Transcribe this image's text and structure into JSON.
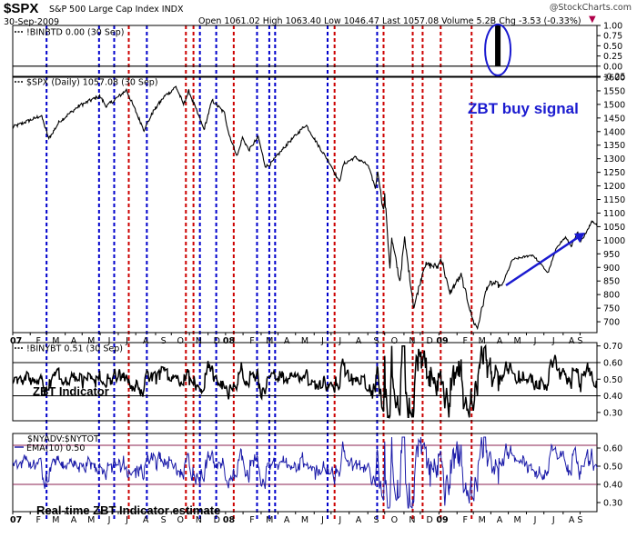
{
  "header": {
    "symbol": "$SPX",
    "name": "S&P 500 Large Cap Index INDX",
    "date": "30-Sep-2009",
    "quote_items": [
      {
        "label": "Open",
        "value": "1061.02"
      },
      {
        "label": "High",
        "value": "1063.40"
      },
      {
        "label": "Low",
        "value": "1046.47"
      },
      {
        "label": "Last",
        "value": "1057.08"
      },
      {
        "label": "Volume",
        "value": "5.2B"
      },
      {
        "label": "Chg",
        "value": "-3.53 (-0.33%)"
      }
    ],
    "brand": "@StockCharts.com",
    "down_arrow": "▼"
  },
  "chart_data": [
    {
      "type": "line",
      "panel": "binbtd",
      "label": "!BINBTD 0.00 (30 Sep)",
      "y_ticks": [
        "1.00",
        "0.75",
        "0.50",
        "0.25",
        "0.00",
        "-0.25"
      ],
      "ylim": [
        -0.25,
        1.0
      ],
      "signal": {
        "date": "2009-04-13",
        "value": 1.0
      },
      "last_value": 0.0
    },
    {
      "type": "line",
      "panel": "spx",
      "label": "$SPX (Daily) 1057.08 (30 Sep)",
      "y_ticks": [
        "1600",
        "1550",
        "1500",
        "1450",
        "1400",
        "1350",
        "1300",
        "1250",
        "1200",
        "1150",
        "1100",
        "1050",
        "1000",
        "950",
        "900",
        "850",
        "800",
        "750",
        "700"
      ],
      "ylim": [
        660,
        1600
      ],
      "keypoints": [
        [
          "2007-01-02",
          1416
        ],
        [
          "2007-02-20",
          1459
        ],
        [
          "2007-03-05",
          1374
        ],
        [
          "2007-03-23",
          1437
        ],
        [
          "2007-04-26",
          1495
        ],
        [
          "2007-05-31",
          1530
        ],
        [
          "2007-06-12",
          1493
        ],
        [
          "2007-07-16",
          1553
        ],
        [
          "2007-08-15",
          1406
        ],
        [
          "2007-08-31",
          1474
        ],
        [
          "2007-09-19",
          1529
        ],
        [
          "2007-10-09",
          1565
        ],
        [
          "2007-10-22",
          1500
        ],
        [
          "2007-10-31",
          1549
        ],
        [
          "2007-11-26",
          1407
        ],
        [
          "2007-12-10",
          1515
        ],
        [
          "2007-12-31",
          1468
        ],
        [
          "2008-01-08",
          1390
        ],
        [
          "2008-01-22",
          1310
        ],
        [
          "2008-01-31",
          1378
        ],
        [
          "2008-02-11",
          1331
        ],
        [
          "2008-02-27",
          1381
        ],
        [
          "2008-03-10",
          1273
        ],
        [
          "2008-03-17",
          1276
        ],
        [
          "2008-04-15",
          1350
        ],
        [
          "2008-05-19",
          1426
        ],
        [
          "2008-06-06",
          1360
        ],
        [
          "2008-06-30",
          1280
        ],
        [
          "2008-07-15",
          1214
        ],
        [
          "2008-07-23",
          1282
        ],
        [
          "2008-08-11",
          1305
        ],
        [
          "2008-09-02",
          1277
        ],
        [
          "2008-09-15",
          1192
        ],
        [
          "2008-09-19",
          1255
        ],
        [
          "2008-09-29",
          1106
        ],
        [
          "2008-10-01",
          1160
        ],
        [
          "2008-10-10",
          899
        ],
        [
          "2008-10-13",
          1003
        ],
        [
          "2008-10-27",
          848
        ],
        [
          "2008-11-04",
          1005
        ],
        [
          "2008-11-20",
          752
        ],
        [
          "2008-12-08",
          909
        ],
        [
          "2008-12-31",
          903
        ],
        [
          "2009-01-06",
          934
        ],
        [
          "2009-01-20",
          805
        ],
        [
          "2009-02-09",
          870
        ],
        [
          "2009-03-02",
          700
        ],
        [
          "2009-03-09",
          677
        ],
        [
          "2009-03-26",
          832
        ],
        [
          "2009-04-03",
          842
        ],
        [
          "2009-04-20",
          832
        ],
        [
          "2009-05-08",
          929
        ],
        [
          "2009-06-12",
          946
        ],
        [
          "2009-07-08",
          880
        ],
        [
          "2009-07-24",
          979
        ],
        [
          "2009-08-07",
          1010
        ],
        [
          "2009-08-17",
          979
        ],
        [
          "2009-08-28",
          1028
        ],
        [
          "2009-09-02",
          994
        ],
        [
          "2009-09-22",
          1071
        ],
        [
          "2009-09-30",
          1057
        ]
      ],
      "annotation": "ZBT buy signal"
    },
    {
      "type": "line",
      "panel": "zbt",
      "label": "!BINYBT 0.51 (30 Sep)",
      "caption": "ZBT Indicator",
      "y_ticks": [
        "0.70",
        "0.60",
        "0.50",
        "0.40",
        "0.30"
      ],
      "ylim": [
        0.25,
        0.72
      ],
      "reference_lines": [
        0.6,
        0.4
      ],
      "last_value": 0.51
    },
    {
      "type": "line",
      "panel": "nyadv",
      "label": "$NYADV:$NYTOT",
      "label2": "EMA(10) 0.50",
      "caption": "Real-time ZBT Indicator estimate",
      "y_ticks": [
        "0.60",
        "0.50",
        "0.40",
        "0.30"
      ],
      "ylim": [
        0.25,
        0.68
      ],
      "reference_lines": [
        0.615,
        0.4
      ],
      "last_value": 0.5
    }
  ],
  "x_axis": {
    "range": [
      "2007-01-02",
      "2009-09-30"
    ],
    "month_labels": [
      {
        "date": "2007-01-02",
        "label": "07",
        "bold": true
      },
      {
        "date": "2007-02-01",
        "label": "F"
      },
      {
        "date": "2007-03-01",
        "label": "M"
      },
      {
        "date": "2007-04-02",
        "label": "A"
      },
      {
        "date": "2007-05-01",
        "label": "M"
      },
      {
        "date": "2007-06-01",
        "label": "J"
      },
      {
        "date": "2007-07-02",
        "label": "J"
      },
      {
        "date": "2007-08-01",
        "label": "A"
      },
      {
        "date": "2007-09-04",
        "label": "S"
      },
      {
        "date": "2007-10-01",
        "label": "O"
      },
      {
        "date": "2007-11-01",
        "label": "N"
      },
      {
        "date": "2007-12-03",
        "label": "D"
      },
      {
        "date": "2008-01-02",
        "label": "08",
        "bold": true
      },
      {
        "date": "2008-02-01",
        "label": "F"
      },
      {
        "date": "2008-03-03",
        "label": "M"
      },
      {
        "date": "2008-04-01",
        "label": "A"
      },
      {
        "date": "2008-05-01",
        "label": "M"
      },
      {
        "date": "2008-06-02",
        "label": "J"
      },
      {
        "date": "2008-07-01",
        "label": "J"
      },
      {
        "date": "2008-08-01",
        "label": "A"
      },
      {
        "date": "2008-09-02",
        "label": "S"
      },
      {
        "date": "2008-10-01",
        "label": "O"
      },
      {
        "date": "2008-11-03",
        "label": "N"
      },
      {
        "date": "2008-12-01",
        "label": "D"
      },
      {
        "date": "2009-01-02",
        "label": "09",
        "bold": true
      },
      {
        "date": "2009-02-02",
        "label": "F"
      },
      {
        "date": "2009-03-02",
        "label": "M"
      },
      {
        "date": "2009-04-01",
        "label": "A"
      },
      {
        "date": "2009-05-01",
        "label": "M"
      },
      {
        "date": "2009-06-01",
        "label": "J"
      },
      {
        "date": "2009-07-01",
        "label": "J"
      },
      {
        "date": "2009-08-03",
        "label": "A"
      },
      {
        "date": "2009-09-01",
        "label": "S"
      }
    ]
  },
  "signal_lines": [
    {
      "date": "2007-03-01",
      "color": "blue"
    },
    {
      "date": "2007-05-30",
      "color": "blue"
    },
    {
      "date": "2007-06-25",
      "color": "blue"
    },
    {
      "date": "2007-07-20",
      "color": "red"
    },
    {
      "date": "2007-08-20",
      "color": "blue"
    },
    {
      "date": "2007-10-26",
      "color": "red"
    },
    {
      "date": "2007-11-08",
      "color": "red"
    },
    {
      "date": "2007-11-19",
      "color": "blue"
    },
    {
      "date": "2007-12-17",
      "color": "blue"
    },
    {
      "date": "2008-01-16",
      "color": "red"
    },
    {
      "date": "2008-02-25",
      "color": "blue"
    },
    {
      "date": "2008-03-17",
      "color": "blue"
    },
    {
      "date": "2008-03-27",
      "color": "blue"
    },
    {
      "date": "2008-06-25",
      "color": "blue"
    },
    {
      "date": "2008-07-07",
      "color": "red"
    },
    {
      "date": "2008-09-18",
      "color": "blue"
    },
    {
      "date": "2008-09-29",
      "color": "red"
    },
    {
      "date": "2008-11-18",
      "color": "red"
    },
    {
      "date": "2008-12-05",
      "color": "red"
    },
    {
      "date": "2009-01-05",
      "color": "red"
    },
    {
      "date": "2009-02-27",
      "color": "red"
    }
  ],
  "colors": {
    "price_line": "#000000",
    "ema_line": "#1a1aa8",
    "blue_signal": "#0000cc",
    "red_signal": "#cc0000",
    "reference_zbt": "#000000",
    "reference_ema": "#8b2252",
    "annotation_text": "#1a1ad0",
    "annotation_arrow": "#1a1ad0",
    "ellipse": "#1a1ad0"
  }
}
